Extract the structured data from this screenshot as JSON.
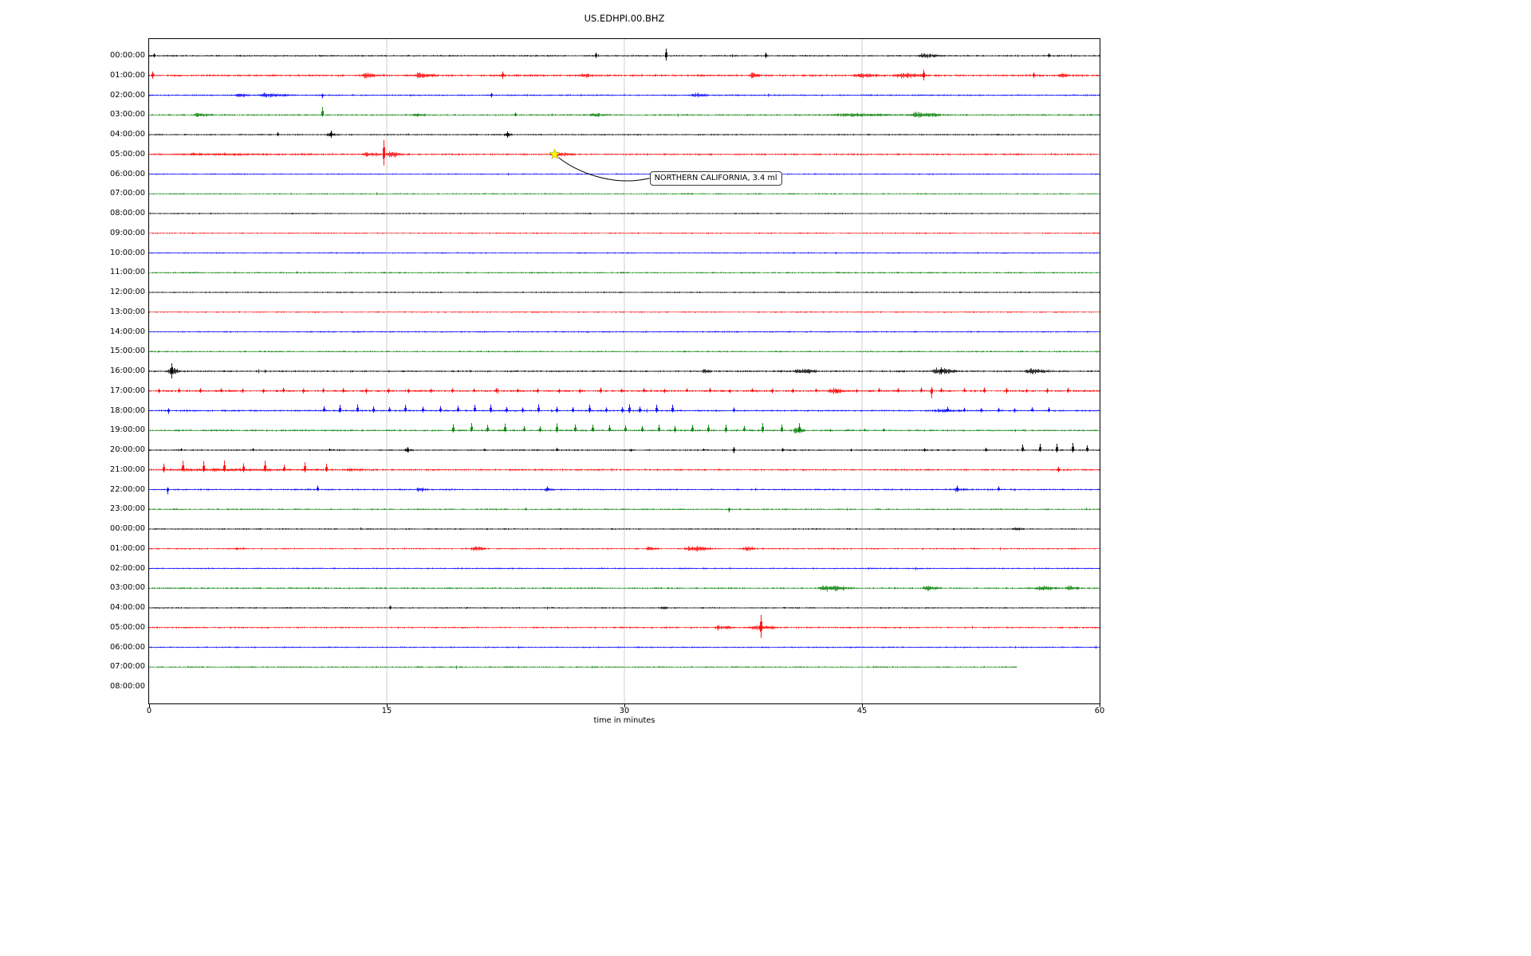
{
  "title": "US.EDHPI.00.BHZ",
  "annotation": {
    "text": "NORTHERN CALIFORNIA, 3.4 ml",
    "row_index": 5,
    "minute": 25.6
  },
  "x_axis": {
    "label": "time in minutes",
    "ticks": [
      0,
      15,
      30,
      45,
      60
    ],
    "min": 0,
    "max": 60,
    "gridlines": [
      15,
      30,
      45
    ]
  },
  "colors": {
    "black": "#000000",
    "red": "#ff0000",
    "blue": "#0000ff",
    "green": "#008000",
    "grid": "#c3c3c3",
    "star_fill": "#ffff00",
    "star_edge": "#a0a000",
    "frame": "#000000"
  },
  "chart_data": {
    "type": "line",
    "title": "US.EDHPI.00.BHZ",
    "xlabel": "time in minutes",
    "xlim": [
      0,
      60
    ],
    "x_ticks": [
      0,
      15,
      30,
      45,
      60
    ],
    "grid": "vertical gridlines at 15, 30, 45",
    "legend": "none",
    "trace_color_cycle": [
      "black",
      "red",
      "blue",
      "green"
    ],
    "description": "Helicorder/day-plot: one horizontal seismic trace per hour, 60 minutes per line",
    "marked_event": {
      "label": "NORTHERN CALIFORNIA, 3.4 ml",
      "hour_row": "05:00:00",
      "minute": 25.6
    },
    "rows": [
      {
        "label": "00:00:00",
        "color": "black",
        "amp": 1.1,
        "events": [
          {
            "type": "spike",
            "t": 0.3,
            "up": 3,
            "down": 2
          },
          {
            "type": "spike",
            "t": 28.2,
            "up": 4,
            "down": 3
          },
          {
            "type": "spike",
            "t": 32.6,
            "up": 9,
            "down": 6
          },
          {
            "type": "spike",
            "t": 38.9,
            "up": 4,
            "down": 3
          },
          {
            "type": "burst",
            "t": 48.5,
            "dur": 1.6,
            "amp": 3
          },
          {
            "type": "spike",
            "t": 56.8,
            "up": 3,
            "down": 2
          }
        ]
      },
      {
        "label": "01:00:00",
        "color": "red",
        "amp": 1.4,
        "events": [
          {
            "type": "spike",
            "t": 0.2,
            "up": 5,
            "down": 4
          },
          {
            "type": "burst",
            "t": 13.4,
            "dur": 0.9,
            "amp": 5
          },
          {
            "type": "burst",
            "t": 16.6,
            "dur": 1.7,
            "amp": 4
          },
          {
            "type": "spike",
            "t": 22.3,
            "up": 5,
            "down": 4
          },
          {
            "type": "burst",
            "t": 27.2,
            "dur": 1.0,
            "amp": 3
          },
          {
            "type": "burst",
            "t": 37.8,
            "dur": 0.9,
            "amp": 4
          },
          {
            "type": "burst",
            "t": 44.2,
            "dur": 2.2,
            "amp": 3
          },
          {
            "type": "burst",
            "t": 46.8,
            "dur": 2.6,
            "amp": 3.5
          },
          {
            "type": "spike",
            "t": 48.9,
            "up": 7,
            "down": 6
          },
          {
            "type": "spike",
            "t": 55.8,
            "up": 4,
            "down": 3
          },
          {
            "type": "burst",
            "t": 57.3,
            "dur": 0.9,
            "amp": 3
          }
        ]
      },
      {
        "label": "02:00:00",
        "color": "blue",
        "amp": 1.1,
        "events": [
          {
            "type": "burst",
            "t": 5.3,
            "dur": 1.2,
            "amp": 2.5
          },
          {
            "type": "burst",
            "t": 6.7,
            "dur": 2.5,
            "amp": 3
          },
          {
            "type": "spike",
            "t": 10.9,
            "up": 2,
            "down": 4
          },
          {
            "type": "spike",
            "t": 21.6,
            "up": 3,
            "down": 3
          },
          {
            "type": "burst",
            "t": 34.1,
            "dur": 1.3,
            "amp": 3
          }
        ]
      },
      {
        "label": "03:00:00",
        "color": "green",
        "amp": 1.1,
        "events": [
          {
            "type": "burst",
            "t": 2.7,
            "dur": 1.5,
            "amp": 3
          },
          {
            "type": "spike",
            "t": 10.9,
            "up": 10,
            "down": 2
          },
          {
            "type": "burst",
            "t": 16.5,
            "dur": 1.1,
            "amp": 2.5
          },
          {
            "type": "spike",
            "t": 23.1,
            "up": 3,
            "down": 2
          },
          {
            "type": "burst",
            "t": 27.7,
            "dur": 1.3,
            "amp": 3
          },
          {
            "type": "burst",
            "t": 42.8,
            "dur": 4.8,
            "amp": 2.2
          },
          {
            "type": "burst",
            "t": 47.7,
            "dur": 2.8,
            "amp": 4
          }
        ]
      },
      {
        "label": "04:00:00",
        "color": "black",
        "amp": 1.0,
        "events": [
          {
            "type": "spike",
            "t": 8.1,
            "up": 3,
            "down": 2
          },
          {
            "type": "burst",
            "t": 11.1,
            "dur": 0.9,
            "amp": 3
          },
          {
            "type": "spike",
            "t": 11.5,
            "up": 5,
            "down": 4
          },
          {
            "type": "burst",
            "t": 22.3,
            "dur": 0.7,
            "amp": 3
          },
          {
            "type": "spike",
            "t": 22.6,
            "up": 4,
            "down": 4
          }
        ]
      },
      {
        "label": "05:00:00",
        "color": "red",
        "amp": 1.2,
        "events": [
          {
            "type": "burst",
            "t": 0.0,
            "dur": 13.0,
            "amp": 1.0
          },
          {
            "type": "burst",
            "t": 13.3,
            "dur": 1.4,
            "amp": 3
          },
          {
            "type": "spike",
            "t": 14.8,
            "up": 18,
            "down": 14
          },
          {
            "type": "burst",
            "t": 14.9,
            "dur": 1.2,
            "amp": 5
          },
          {
            "type": "burst",
            "t": 25.2,
            "dur": 1.8,
            "amp": 3.2
          }
        ]
      },
      {
        "label": "06:00:00",
        "color": "blue",
        "amp": 0.9,
        "events": []
      },
      {
        "label": "07:00:00",
        "color": "green",
        "amp": 0.9,
        "events": []
      },
      {
        "label": "08:00:00",
        "color": "black",
        "amp": 0.9,
        "events": []
      },
      {
        "label": "09:00:00",
        "color": "red",
        "amp": 0.9,
        "events": []
      },
      {
        "label": "10:00:00",
        "color": "blue",
        "amp": 0.9,
        "events": []
      },
      {
        "label": "11:00:00",
        "color": "green",
        "amp": 1.0,
        "events": []
      },
      {
        "label": "12:00:00",
        "color": "black",
        "amp": 0.9,
        "events": []
      },
      {
        "label": "13:00:00",
        "color": "red",
        "amp": 0.9,
        "events": []
      },
      {
        "label": "14:00:00",
        "color": "blue",
        "amp": 1.0,
        "events": []
      },
      {
        "label": "15:00:00",
        "color": "green",
        "amp": 1.0,
        "events": []
      },
      {
        "label": "16:00:00",
        "color": "black",
        "amp": 1.2,
        "events": [
          {
            "type": "burst",
            "t": 1.1,
            "dur": 0.9,
            "amp": 6
          },
          {
            "type": "spike",
            "t": 1.4,
            "up": 10,
            "down": 9
          },
          {
            "type": "burst",
            "t": 34.8,
            "dur": 0.8,
            "amp": 2.5
          },
          {
            "type": "burst",
            "t": 40.6,
            "dur": 1.7,
            "amp": 4
          },
          {
            "type": "burst",
            "t": 49.3,
            "dur": 1.9,
            "amp": 4.5
          },
          {
            "type": "spike",
            "t": 50.0,
            "up": 5,
            "down": 4
          },
          {
            "type": "burst",
            "t": 55.2,
            "dur": 1.9,
            "amp": 4
          }
        ]
      },
      {
        "label": "17:00:00",
        "color": "red",
        "amp": 1.3,
        "events": [
          {
            "type": "periodic",
            "t0": 0.6,
            "t1": 59.4,
            "step": 1.35,
            "up": 3.2,
            "down": 2.2
          },
          {
            "type": "burst",
            "t": 42.7,
            "dur": 1.3,
            "amp": 4
          },
          {
            "type": "spike",
            "t": 49.4,
            "up": 5,
            "down": 9
          }
        ]
      },
      {
        "label": "18:00:00",
        "color": "blue",
        "amp": 1.2,
        "events": [
          {
            "type": "spike",
            "t": 1.2,
            "up": 3,
            "down": 4
          },
          {
            "type": "periodic",
            "t0": 11.0,
            "t1": 33.5,
            "step": 1.05,
            "up": 6,
            "down": 2
          },
          {
            "type": "spike",
            "t": 30.3,
            "up": 8,
            "down": 3
          },
          {
            "type": "spike",
            "t": 36.9,
            "up": 4,
            "down": 2
          },
          {
            "type": "burst",
            "t": 49.4,
            "dur": 2.1,
            "amp": 2.5
          },
          {
            "type": "periodic",
            "t0": 50.4,
            "t1": 57.2,
            "step": 1.1,
            "up": 4,
            "down": 2
          }
        ]
      },
      {
        "label": "19:00:00",
        "color": "green",
        "amp": 1.2,
        "events": [
          {
            "type": "periodic",
            "t0": 19.2,
            "t1": 41.3,
            "step": 1.12,
            "up": 7,
            "down": 2
          },
          {
            "type": "burst",
            "t": 40.6,
            "dur": 0.9,
            "amp": 5
          },
          {
            "type": "spike",
            "t": 41.0,
            "up": 9,
            "down": 3
          },
          {
            "type": "periodic",
            "t0": 43.0,
            "t1": 47.5,
            "step": 1.1,
            "up": 2.2,
            "down": 1.2
          }
        ]
      },
      {
        "label": "20:00:00",
        "color": "black",
        "amp": 1.1,
        "events": [
          {
            "type": "periodic",
            "t0": 2.0,
            "t1": 50.0,
            "step": 4.7,
            "up": 2.2,
            "down": 1.5
          },
          {
            "type": "burst",
            "t": 16.0,
            "dur": 0.7,
            "amp": 3
          },
          {
            "type": "spike",
            "t": 16.3,
            "up": 4,
            "down": 3
          },
          {
            "type": "spike",
            "t": 36.9,
            "up": 4,
            "down": 4
          },
          {
            "type": "spike",
            "t": 52.8,
            "up": 3,
            "down": 2
          },
          {
            "type": "spike",
            "t": 55.1,
            "up": 7,
            "down": 2
          },
          {
            "type": "spike",
            "t": 56.2,
            "up": 8,
            "down": 2
          },
          {
            "type": "spike",
            "t": 57.3,
            "up": 8,
            "down": 3
          },
          {
            "type": "spike",
            "t": 58.3,
            "up": 9,
            "down": 3
          },
          {
            "type": "spike",
            "t": 59.2,
            "up": 6,
            "down": 2
          }
        ]
      },
      {
        "label": "21:00:00",
        "color": "red",
        "amp": 1.2,
        "events": [
          {
            "type": "burst",
            "t": 0.5,
            "dur": 12.0,
            "amp": 1.5
          },
          {
            "type": "periodic",
            "t0": 0.9,
            "t1": 11.8,
            "step": 1.25,
            "up": 9,
            "down": 3
          },
          {
            "type": "burst",
            "t": 12.2,
            "dur": 1.8,
            "amp": 2
          },
          {
            "type": "spike",
            "t": 57.4,
            "up": 4,
            "down": 3
          }
        ]
      },
      {
        "label": "22:00:00",
        "color": "blue",
        "amp": 1.1,
        "events": [
          {
            "type": "spike",
            "t": 1.15,
            "up": 3,
            "down": 6
          },
          {
            "type": "spike",
            "t": 10.6,
            "up": 5,
            "down": 2
          },
          {
            "type": "burst",
            "t": 16.8,
            "dur": 0.9,
            "amp": 3
          },
          {
            "type": "burst",
            "t": 24.9,
            "dur": 0.7,
            "amp": 2.5
          },
          {
            "type": "spike",
            "t": 25.1,
            "up": 4,
            "down": 2
          },
          {
            "type": "burst",
            "t": 50.7,
            "dur": 1.0,
            "amp": 3
          },
          {
            "type": "spike",
            "t": 51.0,
            "up": 5,
            "down": 3
          },
          {
            "type": "spike",
            "t": 53.6,
            "up": 4,
            "down": 2
          }
        ]
      },
      {
        "label": "23:00:00",
        "color": "green",
        "amp": 1.0,
        "events": [
          {
            "type": "spike",
            "t": 36.6,
            "up": 2,
            "down": 4
          }
        ]
      },
      {
        "label": "00:00:00",
        "color": "black",
        "amp": 1.0,
        "events": [
          {
            "type": "burst",
            "t": 54.4,
            "dur": 0.9,
            "amp": 2
          }
        ]
      },
      {
        "label": "01:00:00",
        "color": "red",
        "amp": 1.0,
        "events": [
          {
            "type": "burst",
            "t": 5.3,
            "dur": 0.8,
            "amp": 2
          },
          {
            "type": "burst",
            "t": 20.2,
            "dur": 1.1,
            "amp": 3.5
          },
          {
            "type": "burst",
            "t": 31.3,
            "dur": 0.9,
            "amp": 2.5
          },
          {
            "type": "burst",
            "t": 33.7,
            "dur": 2.1,
            "amp": 4
          },
          {
            "type": "burst",
            "t": 37.3,
            "dur": 1.1,
            "amp": 3.5
          }
        ]
      },
      {
        "label": "02:00:00",
        "color": "blue",
        "amp": 1.0,
        "events": []
      },
      {
        "label": "03:00:00",
        "color": "green",
        "amp": 1.1,
        "events": [
          {
            "type": "burst",
            "t": 42.2,
            "dur": 2.4,
            "amp": 4
          },
          {
            "type": "burst",
            "t": 48.8,
            "dur": 1.2,
            "amp": 4
          },
          {
            "type": "burst",
            "t": 55.9,
            "dur": 1.5,
            "amp": 4
          },
          {
            "type": "burst",
            "t": 57.8,
            "dur": 1.1,
            "amp": 4
          }
        ]
      },
      {
        "label": "04:00:00",
        "color": "black",
        "amp": 1.0,
        "events": [
          {
            "type": "spike",
            "t": 15.2,
            "up": 3,
            "down": 2
          },
          {
            "type": "burst",
            "t": 32.2,
            "dur": 0.6,
            "amp": 2
          }
        ]
      },
      {
        "label": "05:00:00",
        "color": "red",
        "amp": 1.1,
        "events": [
          {
            "type": "burst",
            "t": 35.5,
            "dur": 1.7,
            "amp": 3
          },
          {
            "type": "burst",
            "t": 37.7,
            "dur": 2.3,
            "amp": 3
          },
          {
            "type": "spike",
            "t": 38.6,
            "up": 16,
            "down": 13
          }
        ]
      },
      {
        "label": "06:00:00",
        "color": "blue",
        "amp": 1.0,
        "events": []
      },
      {
        "label": "07:00:00",
        "color": "green",
        "amp": 1.0,
        "end": 54.8,
        "events": []
      },
      {
        "label": "08:00:00",
        "color": "black",
        "amp": 0,
        "end": 0,
        "events": []
      }
    ]
  }
}
